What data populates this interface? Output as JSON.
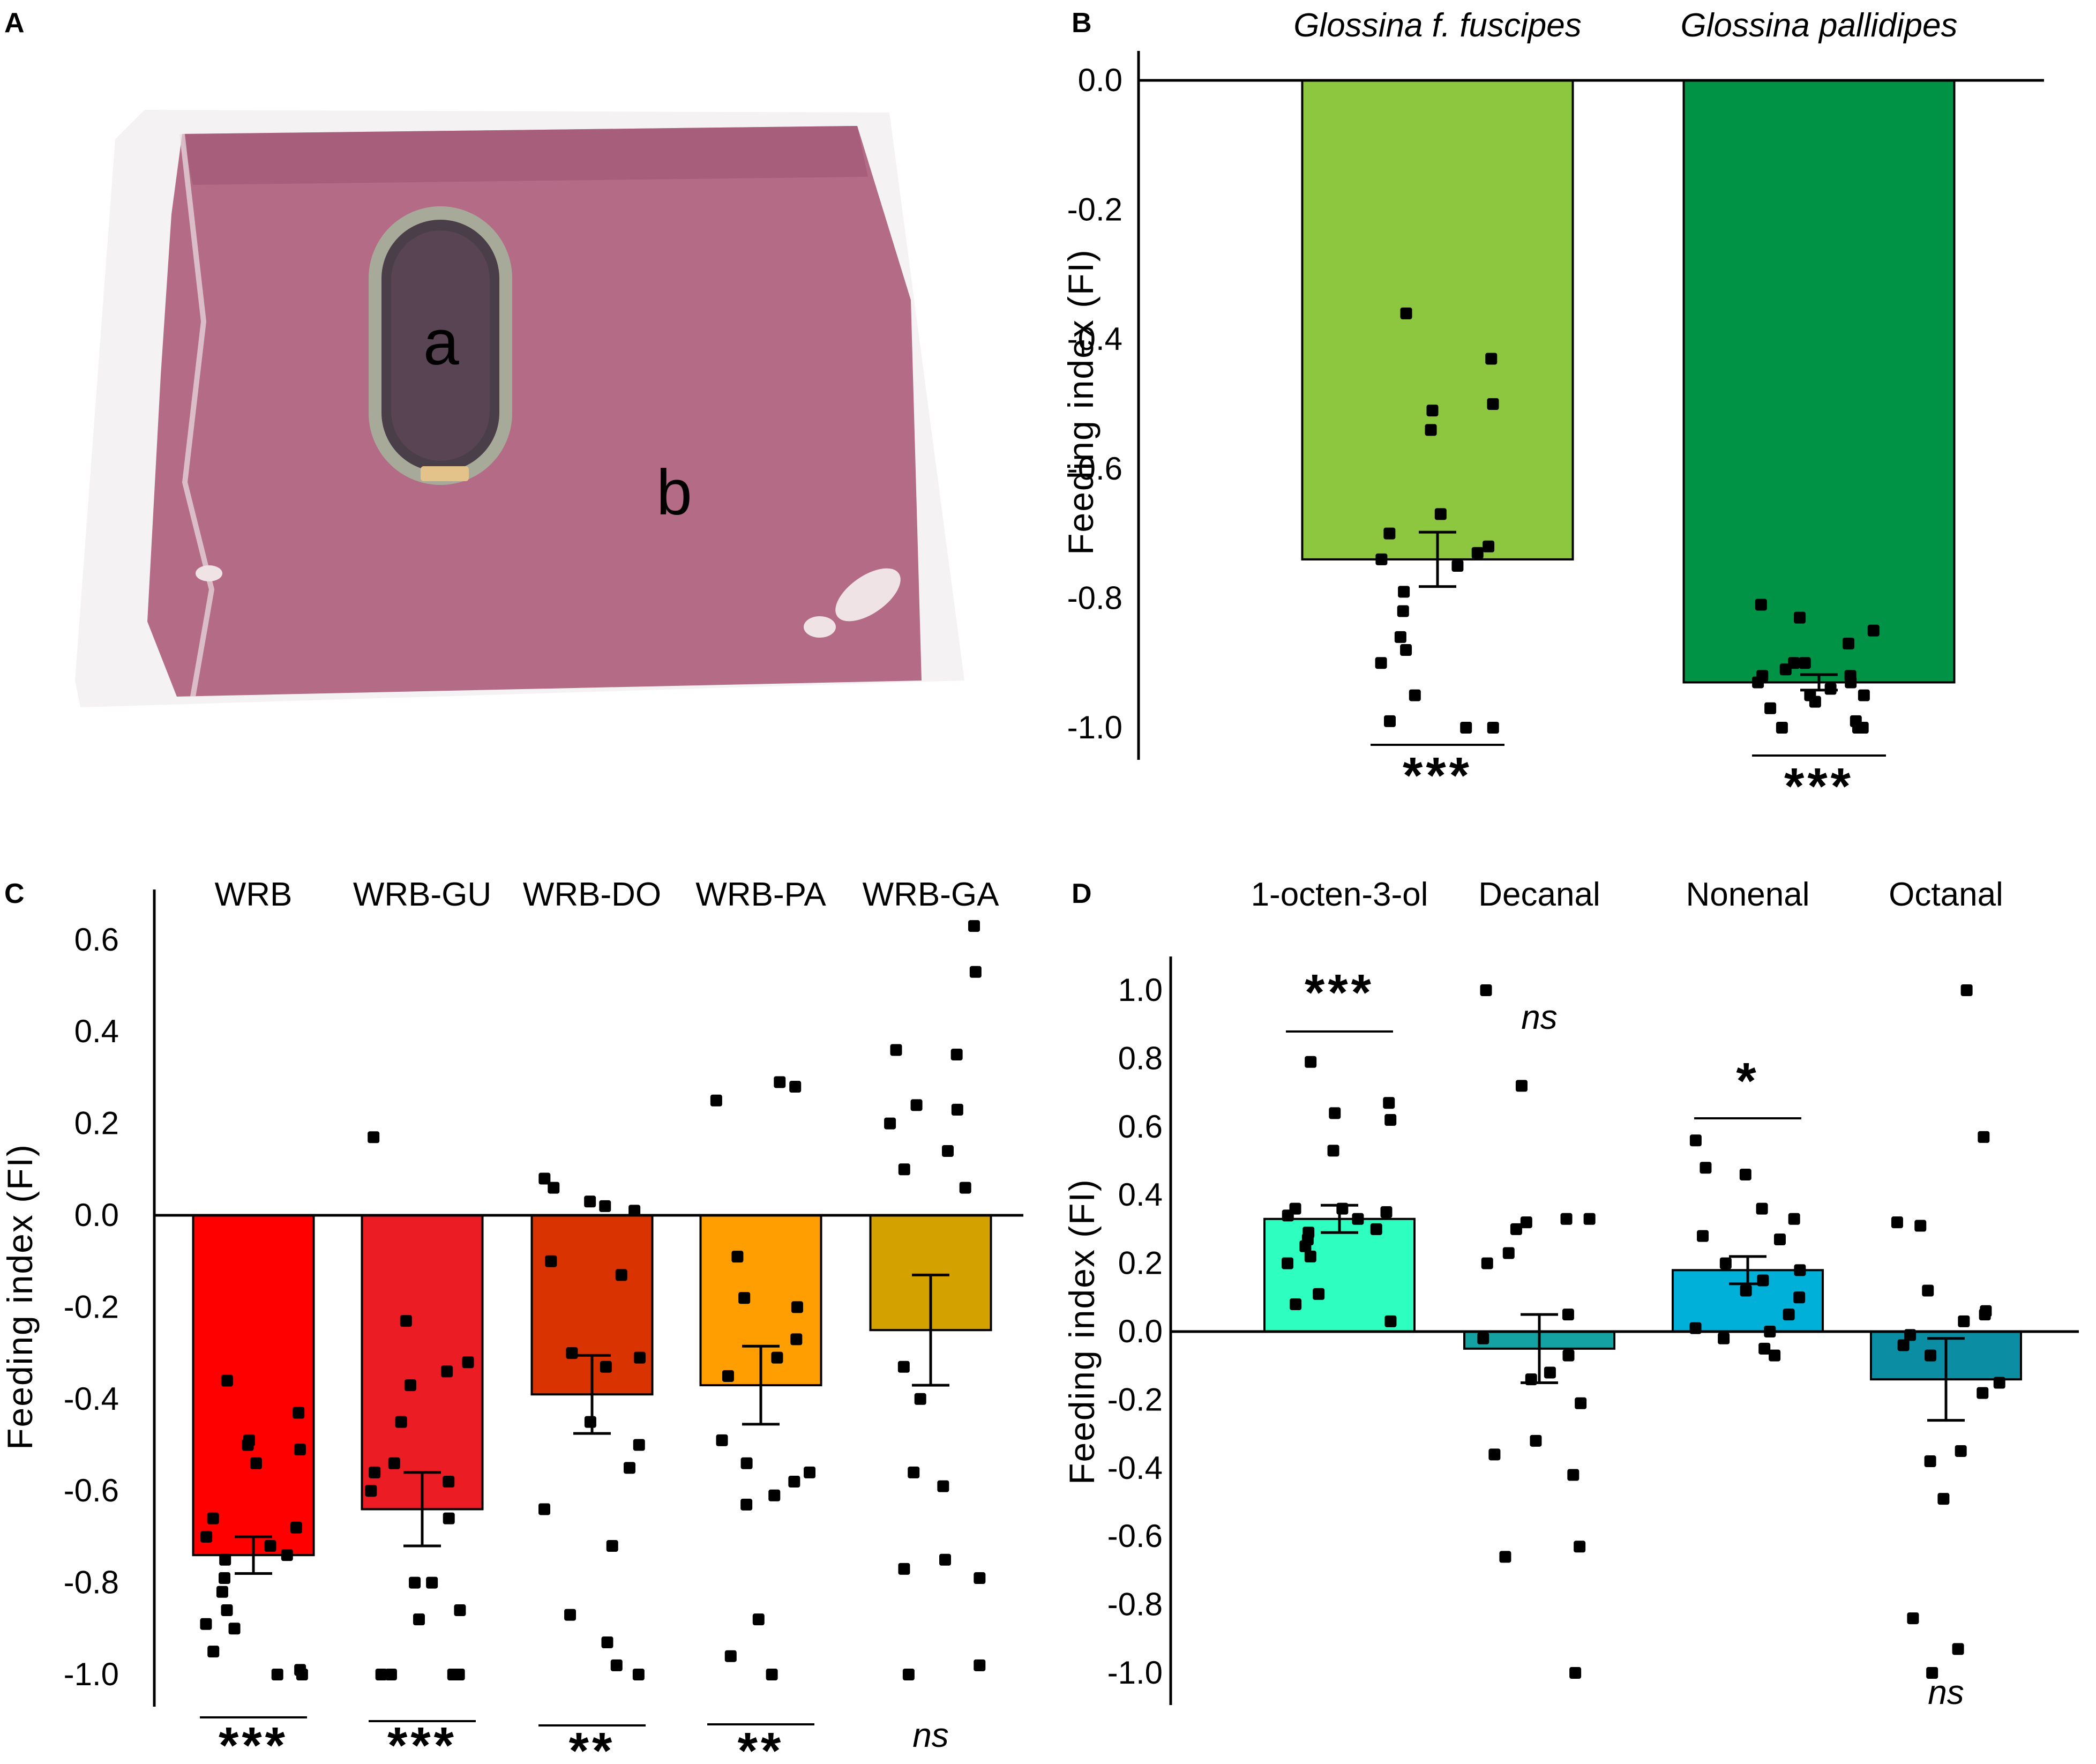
{
  "panels": {
    "A": {
      "letter": "A",
      "photo_labels": {
        "a": "a",
        "b": "b"
      },
      "colors": {
        "background": "#ffffff",
        "surface": "#f3f1f2",
        "fabric": "#b56d86",
        "fabric_dark": "#9e5573",
        "dish_rim": "#a6a897",
        "dish_inner": "#4b3f4a",
        "sponge": "#e4c38a"
      }
    },
    "B": {
      "letter": "B",
      "colors": {
        "bar1": "#8dc63f",
        "bar2": "#009245"
      },
      "sig": [
        "***",
        "***"
      ]
    },
    "C": {
      "letter": "C",
      "colors": {
        "WRB": "#ff0000",
        "WRB-GU": "#ec1c24",
        "WRB-DO": "#d83300",
        "WRB-PA": "#ff9e00",
        "WRB-GA": "#d3a100"
      },
      "sig": [
        "***",
        "***",
        "**",
        "**",
        "ns"
      ]
    },
    "D": {
      "letter": "D",
      "colors": {
        "1-octen-3-ol": "#2effc0",
        "Decanal": "#15a2a2",
        "Nonenal": "#00b0d8",
        "Octanal": "#0b8ea3"
      },
      "sig": [
        "***",
        "ns",
        "*",
        "ns"
      ]
    }
  },
  "chart_data": [
    {
      "id": "B",
      "type": "bar",
      "title": "",
      "xlabel": "",
      "ylabel": "Feeding index (FI)",
      "ylim": [
        -1.05,
        0.05
      ],
      "yticks": [
        0.0,
        -0.2,
        -0.4,
        -0.6,
        -0.8,
        -1.0
      ],
      "ytick_labels": [
        "0.0",
        "-0.2",
        "-0.4",
        "-0.6",
        "-0.8",
        "-1.0"
      ],
      "grid": false,
      "categories": [
        "Glossina f. fuscipes",
        "Glossina pallidipes"
      ],
      "values": [
        -0.74,
        -0.93
      ],
      "errors": [
        0.042,
        0.012
      ],
      "points": [
        [
          -0.36,
          -0.43,
          -0.51,
          -0.5,
          -0.54,
          -0.67,
          -0.7,
          -0.72,
          -0.74,
          -0.75,
          -0.73,
          -0.79,
          -0.82,
          -0.86,
          -0.88,
          -0.9,
          -0.95,
          -0.99,
          -1.0,
          -1.0
        ],
        [
          -0.81,
          -0.83,
          -0.85,
          -0.87,
          -0.9,
          -0.9,
          -0.91,
          -0.92,
          -0.92,
          -0.93,
          -0.93,
          -0.94,
          -0.95,
          -0.95,
          -0.96,
          -0.97,
          -0.99,
          -1.0,
          -1.0,
          -1.0
        ]
      ],
      "significance": [
        "***",
        "***"
      ]
    },
    {
      "id": "C",
      "type": "bar",
      "title": "",
      "xlabel": "",
      "ylabel": "Feeding index (FI)",
      "ylim": [
        -1.07,
        0.65
      ],
      "yticks": [
        0.6,
        0.4,
        0.2,
        0.0,
        -0.2,
        -0.4,
        -0.6,
        -0.8,
        -1.0
      ],
      "ytick_labels": [
        "0.6",
        "0.4",
        "0.2",
        "0.0",
        "-0.2",
        "-0.4",
        "-0.6",
        "-0.8",
        "-1.0"
      ],
      "grid": false,
      "categories": [
        "WRB",
        "WRB-GU",
        "WRB-DO",
        "WRB-PA",
        "WRB-GA"
      ],
      "values": [
        -0.74,
        -0.64,
        -0.39,
        -0.37,
        -0.25
      ],
      "errors": [
        0.04,
        0.08,
        0.085,
        0.085,
        0.12
      ],
      "points": [
        [
          -0.36,
          -0.43,
          -0.49,
          -0.51,
          -0.5,
          -0.54,
          -0.66,
          -0.68,
          -0.7,
          -0.72,
          -0.74,
          -0.75,
          -0.79,
          -0.82,
          -0.86,
          -0.89,
          -0.9,
          -0.95,
          -0.99,
          -1.0,
          -1.0
        ],
        [
          0.17,
          -0.23,
          -0.32,
          -0.34,
          -0.37,
          -0.45,
          -0.54,
          -0.56,
          -0.58,
          -0.6,
          -0.66,
          -0.8,
          -0.8,
          -0.86,
          -0.88,
          -1.0,
          -1.0,
          -1.0,
          -1.0
        ],
        [
          0.08,
          0.06,
          0.03,
          0.02,
          0.01,
          -0.1,
          -0.13,
          -0.3,
          -0.31,
          -0.33,
          -0.45,
          -0.5,
          -0.55,
          -0.64,
          -0.72,
          -0.87,
          -0.93,
          -0.98,
          -1.0
        ],
        [
          0.29,
          0.28,
          0.25,
          -0.09,
          -0.18,
          -0.2,
          -0.27,
          -0.31,
          -0.35,
          -0.49,
          -0.54,
          -0.56,
          -0.58,
          -0.61,
          -0.63,
          -0.88,
          -0.96,
          -1.0
        ],
        [
          0.63,
          0.53,
          0.36,
          0.35,
          0.24,
          0.23,
          0.2,
          0.14,
          0.1,
          0.06,
          -0.33,
          -0.4,
          -0.56,
          -0.59,
          -0.75,
          -0.77,
          -0.79,
          -0.98,
          -1.0
        ]
      ],
      "significance": [
        "***",
        "***",
        "**",
        "**",
        "ns"
      ]
    },
    {
      "id": "D",
      "type": "bar",
      "title": "",
      "xlabel": "",
      "ylabel": "Feeding index (FI)",
      "ylim": [
        -1.1,
        1.1
      ],
      "yticks": [
        1.0,
        0.8,
        0.6,
        0.4,
        0.2,
        0.0,
        -0.2,
        -0.4,
        -0.6,
        -0.8,
        -1.0
      ],
      "ytick_labels": [
        "1.0",
        "0.8",
        "0.6",
        "0.4",
        "0.2",
        "0.0",
        "-0.2",
        "-0.4",
        "-0.6",
        "-0.8",
        "-1.0"
      ],
      "grid": false,
      "categories": [
        "1-octen-3-ol",
        "Decanal",
        "Nonenal",
        "Octanal"
      ],
      "values": [
        0.33,
        -0.05,
        0.18,
        -0.14
      ],
      "errors": [
        0.04,
        0.1,
        0.04,
        0.12
      ],
      "points": [
        [
          0.79,
          0.67,
          0.64,
          0.62,
          0.53,
          0.36,
          0.36,
          0.35,
          0.34,
          0.33,
          0.3,
          0.29,
          0.27,
          0.25,
          0.22,
          0.2,
          0.11,
          0.08,
          0.03
        ],
        [
          1.0,
          0.72,
          0.33,
          0.33,
          0.32,
          0.3,
          0.23,
          0.2,
          0.05,
          -0.02,
          -0.07,
          -0.12,
          -0.14,
          -0.21,
          -0.32,
          -0.36,
          -0.42,
          -0.63,
          -0.66,
          -1.0
        ],
        [
          0.56,
          0.48,
          0.46,
          0.36,
          0.33,
          0.28,
          0.27,
          0.2,
          0.18,
          0.15,
          0.12,
          0.1,
          0.05,
          0.01,
          0.0,
          -0.02,
          -0.05,
          -0.07
        ],
        [
          1.0,
          0.57,
          0.32,
          0.31,
          0.12,
          0.06,
          0.05,
          0.03,
          -0.01,
          -0.04,
          -0.07,
          -0.15,
          -0.18,
          -0.35,
          -0.38,
          -0.49,
          -0.84,
          -0.93,
          -1.0
        ]
      ],
      "significance": [
        "***",
        "ns",
        "*",
        "ns"
      ]
    }
  ]
}
